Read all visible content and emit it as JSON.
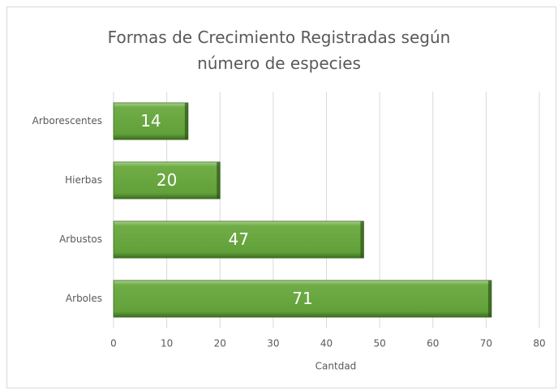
{
  "chart_data": {
    "type": "barh",
    "title": "Formas de Crecimiento Registradas según número de especies",
    "x_label": "Cantdad",
    "categories": [
      "Arborescentes",
      "Hierbas",
      "Arbustos",
      "Arboles"
    ],
    "values": [
      14,
      20,
      47,
      71
    ],
    "color": "#70ad47",
    "xlim": [
      0,
      80
    ],
    "xticks": [
      0,
      10,
      20,
      30,
      40,
      50,
      60,
      70,
      80
    ],
    "grid": true
  }
}
